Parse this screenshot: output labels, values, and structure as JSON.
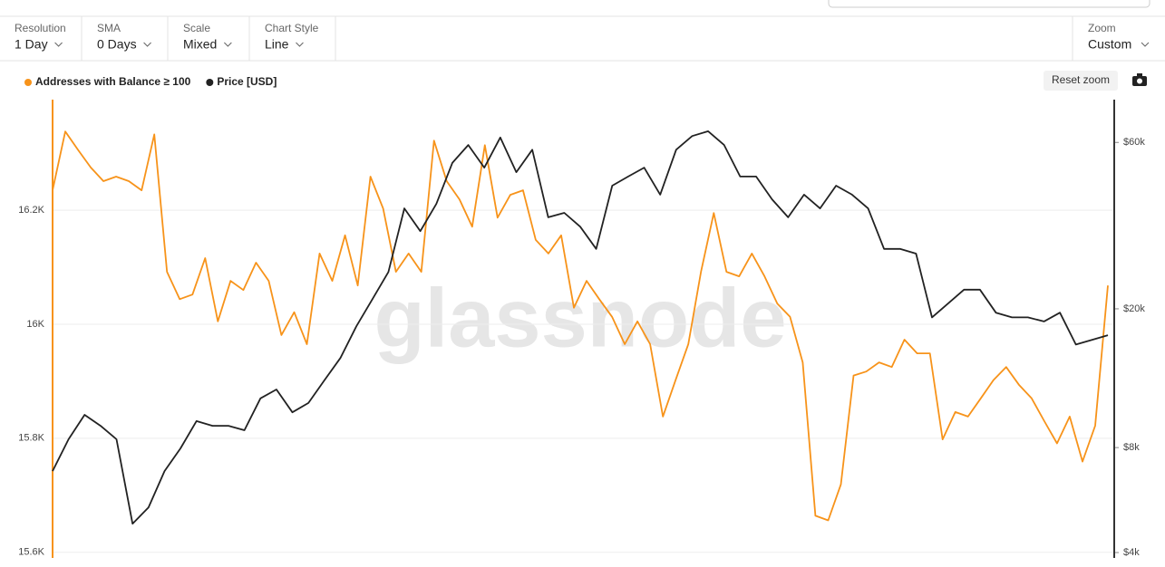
{
  "toolbar": [
    {
      "label": "Resolution",
      "value": "1 Day"
    },
    {
      "label": "SMA",
      "value": "0 Days"
    },
    {
      "label": "Scale",
      "value": "Mixed"
    },
    {
      "label": "Chart Style",
      "value": "Line"
    }
  ],
  "zoom": {
    "label": "Zoom",
    "value": "Custom"
  },
  "reset_zoom": "Reset zoom",
  "watermark": "glassnode",
  "chart_data": {
    "type": "line",
    "series": [
      {
        "name": "Addresses with Balance ≥ 100",
        "color": "#f7931a",
        "axis": "y",
        "values": [
          16235,
          16338,
          16306,
          16275,
          16251,
          16259,
          16251,
          16235,
          16333,
          16092,
          16044,
          16052,
          16116,
          16005,
          16076,
          16060,
          16108,
          16076,
          15981,
          16021,
          15965,
          16124,
          16076,
          16156,
          16068,
          16259,
          16203,
          16092,
          16124,
          16092,
          16322,
          16251,
          16219,
          16171,
          16314,
          16187,
          16227,
          16235,
          16148,
          16124,
          16156,
          16029,
          16076,
          16044,
          16013,
          15965,
          16005,
          15965,
          15838,
          15902,
          15965,
          16092,
          16195,
          16092,
          16084,
          16124,
          16084,
          16036,
          16013,
          15933,
          15664,
          15656,
          15719,
          15910,
          15917,
          15933,
          15925,
          15973,
          15949,
          15949,
          15798,
          15846,
          15838,
          15870,
          15902,
          15925,
          15894,
          15870,
          15830,
          15791,
          15838,
          15759,
          15822,
          16068
        ]
      },
      {
        "name": "Price [USD]",
        "color": "#222222",
        "axis": "y2",
        "values": [
          6850,
          8450,
          9930,
          9240,
          8450,
          4840,
          5390,
          6850,
          7960,
          9530,
          9240,
          9240,
          8970,
          11070,
          11740,
          10100,
          10740,
          12470,
          14460,
          17830,
          21300,
          25500,
          38800,
          33400,
          40000,
          52400,
          59000,
          50800,
          62000,
          49300,
          57200,
          36600,
          37700,
          34400,
          29700,
          45100,
          47900,
          50800,
          42500,
          57200,
          62600,
          64600,
          59000,
          47900,
          47900,
          41200,
          36600,
          42500,
          38800,
          45100,
          42500,
          38800,
          29700,
          29700,
          28800,
          18900,
          20700,
          22700,
          22700,
          19500,
          18900,
          18900,
          18400,
          19500,
          15800,
          16300,
          16800
        ]
      }
    ],
    "ylim": [
      15590,
      16394
    ],
    "yticks": [
      {
        "value": 15600,
        "label": "15.6K"
      },
      {
        "value": 15800,
        "label": "15.8K"
      },
      {
        "value": 16000,
        "label": "16K"
      },
      {
        "value": 16200,
        "label": "16.2K"
      }
    ],
    "y2lim": [
      3860,
      79600
    ],
    "y2ticks": [
      {
        "value": 4000,
        "label": "$4k"
      },
      {
        "value": 8000,
        "label": "$8k"
      },
      {
        "value": 20000,
        "label": "$20k"
      },
      {
        "value": 60000,
        "label": "$60k"
      }
    ],
    "y2_log": true,
    "grid": true
  }
}
